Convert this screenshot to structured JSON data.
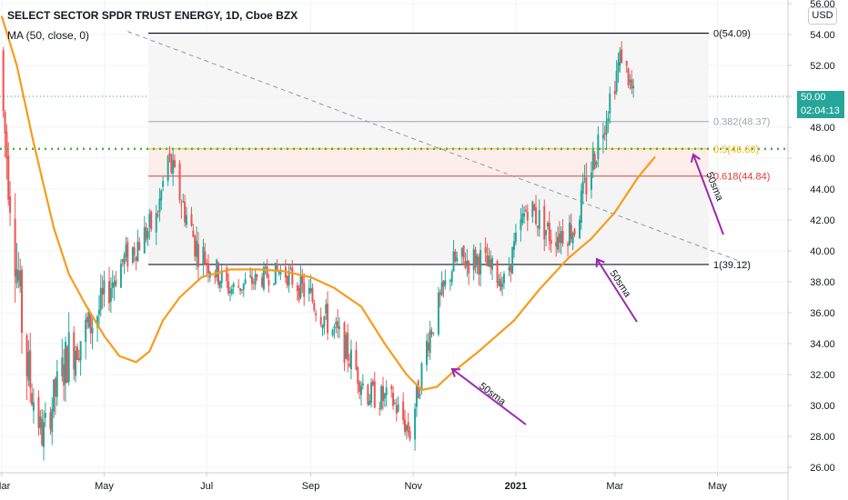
{
  "header": {
    "title": "SELECT SECTOR SPDR TRUST ENERGY, 1D, Cboe BZX",
    "indicator": "MA (50, close, 0)"
  },
  "price_scale": {
    "currency": "USD"
  },
  "last_price": {
    "value": "50.00",
    "countdown": "02:04:13",
    "color": "#26a69a"
  },
  "colors": {
    "up": "#26a69a",
    "down": "#ef5350",
    "ma": "#f89b1c",
    "annotation": "#9c27b0",
    "support_line": "#4caf50"
  },
  "chart_data": {
    "type": "candlestick",
    "title": "SELECT SECTOR SPDR TRUST ENERGY, 1D, Cboe BZX",
    "x_ticks": [
      "Mar",
      "May",
      "Jul",
      "Sep",
      "Nov",
      "2021",
      "Mar",
      "May"
    ],
    "y_ticks": [
      "26.00",
      "28.00",
      "30.00",
      "32.00",
      "34.00",
      "36.00",
      "38.00",
      "40.00",
      "42.00",
      "44.00",
      "46.00",
      "48.00",
      "50.00",
      "52.00",
      "54.00",
      "56.00"
    ],
    "ylim": [
      25.9,
      56.2
    ],
    "x_range": [
      "2020-02-29",
      "2021-06-12"
    ],
    "series": [
      {
        "name": "MA (50, close, 0)",
        "points": [
          [
            "2020-03-01",
            55.2
          ],
          [
            "2020-03-10",
            52.0
          ],
          [
            "2020-03-20",
            47.0
          ],
          [
            "2020-04-01",
            41.5
          ],
          [
            "2020-04-10",
            38.5
          ],
          [
            "2020-04-20",
            36.5
          ],
          [
            "2020-05-01",
            34.5
          ],
          [
            "2020-05-10",
            33.2
          ],
          [
            "2020-05-20",
            32.8
          ],
          [
            "2020-05-28",
            33.5
          ],
          [
            "2020-06-05",
            35.5
          ],
          [
            "2020-06-15",
            37.0
          ],
          [
            "2020-06-28",
            38.3
          ],
          [
            "2020-07-15",
            38.8
          ],
          [
            "2020-08-01",
            38.8
          ],
          [
            "2020-08-15",
            38.7
          ],
          [
            "2020-09-01",
            38.3
          ],
          [
            "2020-09-15",
            37.6
          ],
          [
            "2020-10-01",
            36.4
          ],
          [
            "2020-10-15",
            34.0
          ],
          [
            "2020-10-28",
            32.0
          ],
          [
            "2020-11-06",
            31.0
          ],
          [
            "2020-11-15",
            31.2
          ],
          [
            "2020-11-25",
            32.2
          ],
          [
            "2020-12-10",
            33.5
          ],
          [
            "2020-12-31",
            35.5
          ],
          [
            "2021-01-15",
            37.5
          ],
          [
            "2021-02-01",
            39.5
          ],
          [
            "2021-02-15",
            40.8
          ],
          [
            "2021-03-01",
            42.5
          ],
          [
            "2021-03-15",
            44.8
          ],
          [
            "2021-03-25",
            46.1
          ]
        ]
      },
      {
        "name": "candles",
        "ohlc_daily_approx": [
          [
            "2020-03",
            53.0,
            47.0
          ],
          [
            "2020-03-15",
            36.0,
            30.0
          ],
          [
            "2020-03-25",
            27.0,
            29.0
          ],
          [
            "2020-04-10",
            31.0,
            36.0
          ],
          [
            "2020-04-25",
            34.0,
            37.0
          ],
          [
            "2020-05-10",
            38.0,
            40.0
          ],
          [
            "2020-06-01",
            41.0,
            43.0
          ],
          [
            "2020-06-08",
            45.0,
            47.0
          ],
          [
            "2020-06-25",
            41.5,
            39.0
          ],
          [
            "2020-07-15",
            38.0,
            37.0
          ],
          [
            "2020-08-15",
            38.5,
            39.0
          ],
          [
            "2020-09-01",
            38.0,
            36.0
          ],
          [
            "2020-09-20",
            35.0,
            33.0
          ],
          [
            "2020-10-05",
            31.5,
            30.0
          ],
          [
            "2020-10-20",
            31.0,
            29.5
          ],
          [
            "2020-10-30",
            27.5,
            29.0
          ],
          [
            "2020-11-10",
            33.5,
            35.5
          ],
          [
            "2020-11-25",
            38.5,
            40.0
          ],
          [
            "2020-12-10",
            40.5,
            38.5
          ],
          [
            "2020-12-25",
            37.5,
            38.5
          ],
          [
            "2021-01-08",
            42.0,
            44.0
          ],
          [
            "2021-01-22",
            42.0,
            40.0
          ],
          [
            "2021-02-05",
            40.5,
            42.5
          ],
          [
            "2021-02-20",
            46.0,
            49.0
          ],
          [
            "2021-03-05",
            53.5,
            52.0
          ],
          [
            "2021-03-12",
            50.5,
            49.5
          ]
        ]
      }
    ],
    "fibonacci": {
      "levels": [
        {
          "ratio": "0",
          "value": 54.09,
          "label": "0(54.09)"
        },
        {
          "ratio": "0.382",
          "value": 48.37,
          "label": "0.382(48.37)"
        },
        {
          "ratio": "0.5",
          "value": 46.6,
          "label": "0.5(46.60)"
        },
        {
          "ratio": "0.618",
          "value": 44.84,
          "label": "0.618(44.84)"
        },
        {
          "ratio": "1",
          "value": 39.12,
          "label": "1(39.12)"
        }
      ]
    },
    "trendline": {
      "from": [
        "2020-05-15",
        54.2
      ],
      "to": [
        "2021-05-20",
        39.1
      ]
    },
    "support_line": {
      "value": 46.6,
      "style": "dotted"
    },
    "annotations": [
      {
        "label": "50sma",
        "arrow_to": [
          "2020-11-08",
          32.0
        ]
      },
      {
        "label": "50sma",
        "arrow_to": [
          "2021-02-16",
          39.6
        ]
      },
      {
        "label": "50sma",
        "arrow_to": [
          "2021-04-08",
          46.6
        ]
      }
    ]
  }
}
